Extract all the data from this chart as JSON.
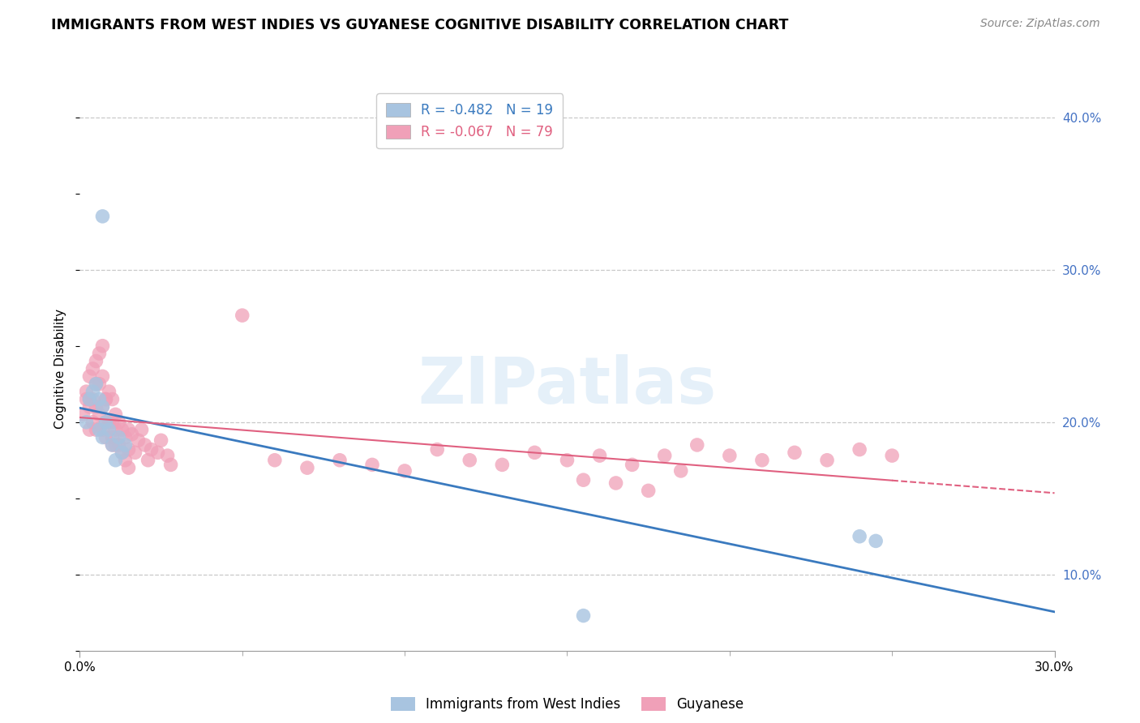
{
  "title": "IMMIGRANTS FROM WEST INDIES VS GUYANESE COGNITIVE DISABILITY CORRELATION CHART",
  "source": "Source: ZipAtlas.com",
  "ylabel": "Cognitive Disability",
  "legend_label_blue": "Immigrants from West Indies",
  "legend_label_pink": "Guyanese",
  "blue_R": -0.482,
  "blue_N": 19,
  "pink_R": -0.067,
  "pink_N": 79,
  "blue_color": "#a8c4e0",
  "pink_color": "#f0a0b8",
  "blue_line_color": "#3a7abf",
  "pink_line_color": "#e06080",
  "xlim": [
    0.0,
    0.3
  ],
  "ylim": [
    0.05,
    0.42
  ],
  "yticks": [
    0.1,
    0.2,
    0.3,
    0.4
  ],
  "ytick_labels": [
    "10.0%",
    "20.0%",
    "30.0%",
    "40.0%"
  ],
  "watermark_text": "ZIPatlas",
  "blue_x": [
    0.002,
    0.003,
    0.004,
    0.005,
    0.006,
    0.006,
    0.007,
    0.007,
    0.008,
    0.009,
    0.01,
    0.011,
    0.012,
    0.013,
    0.014,
    0.155,
    0.24,
    0.245,
    0.007
  ],
  "blue_y": [
    0.2,
    0.215,
    0.22,
    0.225,
    0.215,
    0.195,
    0.21,
    0.19,
    0.2,
    0.195,
    0.185,
    0.175,
    0.19,
    0.18,
    0.185,
    0.073,
    0.125,
    0.122,
    0.335
  ],
  "pink_x": [
    0.001,
    0.002,
    0.002,
    0.003,
    0.003,
    0.003,
    0.003,
    0.004,
    0.004,
    0.004,
    0.005,
    0.005,
    0.005,
    0.005,
    0.006,
    0.006,
    0.006,
    0.007,
    0.007,
    0.007,
    0.007,
    0.008,
    0.008,
    0.008,
    0.008,
    0.009,
    0.009,
    0.01,
    0.01,
    0.01,
    0.01,
    0.011,
    0.011,
    0.011,
    0.012,
    0.012,
    0.013,
    0.013,
    0.014,
    0.014,
    0.015,
    0.015,
    0.015,
    0.016,
    0.017,
    0.018,
    0.019,
    0.02,
    0.021,
    0.022,
    0.024,
    0.025,
    0.027,
    0.028,
    0.05,
    0.06,
    0.07,
    0.08,
    0.09,
    0.1,
    0.11,
    0.12,
    0.13,
    0.14,
    0.15,
    0.16,
    0.17,
    0.18,
    0.19,
    0.2,
    0.21,
    0.22,
    0.23,
    0.24,
    0.25,
    0.155,
    0.175,
    0.185,
    0.165
  ],
  "pink_y": [
    0.205,
    0.22,
    0.215,
    0.23,
    0.21,
    0.195,
    0.215,
    0.235,
    0.215,
    0.2,
    0.24,
    0.225,
    0.21,
    0.195,
    0.245,
    0.225,
    0.205,
    0.25,
    0.23,
    0.21,
    0.195,
    0.215,
    0.2,
    0.19,
    0.215,
    0.22,
    0.2,
    0.215,
    0.2,
    0.19,
    0.185,
    0.205,
    0.195,
    0.185,
    0.2,
    0.185,
    0.195,
    0.18,
    0.19,
    0.175,
    0.195,
    0.182,
    0.17,
    0.192,
    0.18,
    0.188,
    0.195,
    0.185,
    0.175,
    0.182,
    0.18,
    0.188,
    0.178,
    0.172,
    0.27,
    0.175,
    0.17,
    0.175,
    0.172,
    0.168,
    0.182,
    0.175,
    0.172,
    0.18,
    0.175,
    0.178,
    0.172,
    0.178,
    0.185,
    0.178,
    0.175,
    0.18,
    0.175,
    0.182,
    0.178,
    0.162,
    0.155,
    0.168,
    0.16
  ]
}
